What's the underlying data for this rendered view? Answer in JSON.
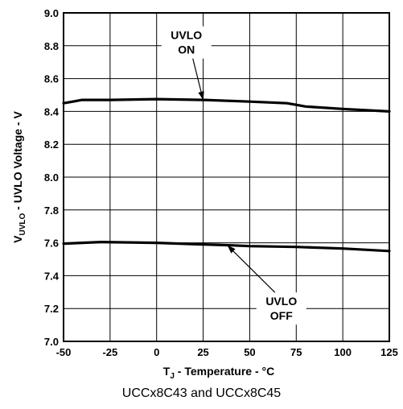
{
  "chart_data": {
    "type": "line",
    "xlabel_main": "T",
    "xlabel_sub": "J",
    "xlabel_rest": " - Temperature - °C",
    "ylabel_main": "V",
    "ylabel_sub": "UVLO",
    "ylabel_rest": " - UVLO Voltage - V",
    "xlim": [
      -50,
      125
    ],
    "ylim": [
      7.0,
      9.0
    ],
    "x_ticks": [
      "-50",
      "-25",
      "0",
      "25",
      "50",
      "75",
      "100",
      "125"
    ],
    "y_ticks": [
      "7.0",
      "7.2",
      "7.4",
      "7.6",
      "7.8",
      "8.0",
      "8.2",
      "8.4",
      "8.6",
      "8.8",
      "9.0"
    ],
    "grid": true,
    "series": [
      {
        "name": "UVLO ON",
        "x": [
          -50,
          -45,
          -40,
          -25,
          0,
          25,
          50,
          70,
          75,
          80,
          100,
          125
        ],
        "y": [
          8.45,
          8.46,
          8.47,
          8.47,
          8.475,
          8.47,
          8.46,
          8.45,
          8.44,
          8.43,
          8.415,
          8.4
        ]
      },
      {
        "name": "UVLO OFF",
        "x": [
          -50,
          -40,
          -30,
          0,
          25,
          40,
          50,
          75,
          100,
          125
        ],
        "y": [
          7.595,
          7.6,
          7.605,
          7.6,
          7.59,
          7.585,
          7.58,
          7.575,
          7.565,
          7.55
        ]
      }
    ],
    "annotations": [
      {
        "lines": [
          "UVLO",
          "ON"
        ],
        "x": 16,
        "y": 8.82,
        "arrow_to": [
          25,
          8.47
        ]
      },
      {
        "lines": [
          "UVLO",
          "OFF"
        ],
        "x": 67,
        "y": 7.2,
        "arrow_to": [
          38,
          7.585
        ]
      }
    ]
  },
  "caption": "UCCx8C43 and UCCx8C45"
}
